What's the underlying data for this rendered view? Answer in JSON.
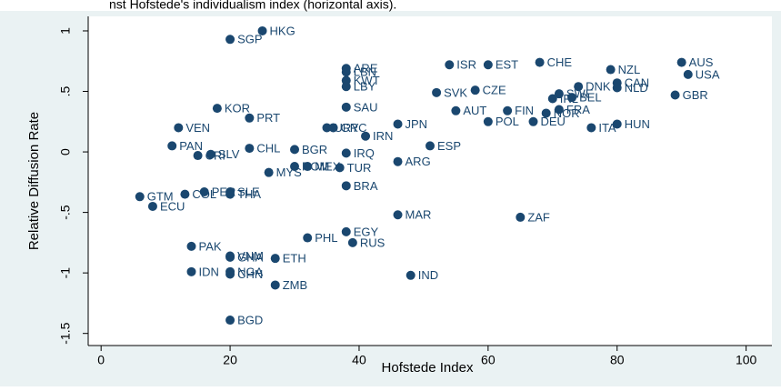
{
  "chart_data": {
    "type": "scatter",
    "caption": "nst Hofstede's individualism index (horizontal axis).",
    "x_label": "Hofstede Index",
    "y_label": "Relative Diffusion Rate",
    "color": "#1a476f",
    "xlim": [
      -2,
      104
    ],
    "ylim": [
      -1.6,
      1.12
    ],
    "xticks": [
      0,
      20,
      40,
      60,
      80,
      100
    ],
    "yticks": [
      1,
      {
        "value": 0.5,
        "label": ".5"
      },
      0,
      {
        "value": -0.5,
        "label": "-.5"
      },
      -1,
      -1.5
    ],
    "labels": [
      "HKG",
      "SGP",
      "ARE",
      "LBN",
      "KWT",
      "LBY",
      "ISR",
      "EST",
      "CHE",
      "NZL",
      "AUS",
      "USA",
      "CAN",
      "NLD",
      "DNK",
      "SWE",
      "IRL",
      "BEL",
      "GBR",
      "NOR",
      "FRA",
      "SVK",
      "CZE",
      "KOR",
      "SAU",
      "PRT",
      "AUT",
      "FIN",
      "VEN",
      "URY",
      "GRC",
      "JPN",
      "IRN",
      "POL",
      "DEU",
      "ITA",
      "HUN",
      "PAN",
      "CHL",
      "BGR",
      "IRQ",
      "ESP",
      "CRI",
      "SLV",
      "ARG",
      "ROM",
      "MEX",
      "TUR",
      "MYS",
      "BRA",
      "GTM",
      "COL",
      "PER",
      "SLE",
      "THA",
      "ECU",
      "MAR",
      "ZAF",
      "EGY",
      "PHL",
      "RUS",
      "PAK",
      "VNM",
      "GHA",
      "ETH",
      "IDN",
      "NGA",
      "CHN",
      "IND",
      "ZMB",
      "BGD"
    ],
    "x": [
      25,
      20,
      38,
      38,
      38,
      38,
      54,
      60,
      68,
      79,
      90,
      91,
      80,
      80,
      74,
      71,
      70,
      73,
      89,
      69,
      71,
      52,
      58,
      18,
      38,
      23,
      55,
      63,
      12,
      35,
      36,
      46,
      41,
      60,
      67,
      76,
      80,
      11,
      23,
      30,
      38,
      51,
      15,
      17,
      46,
      30,
      32,
      37,
      26,
      38,
      6,
      13,
      16,
      20,
      20,
      8,
      46,
      65,
      38,
      32,
      39,
      14,
      20,
      20,
      27,
      14,
      20,
      20,
      48,
      27,
      20
    ],
    "values": [
      1.0,
      0.93,
      0.69,
      0.66,
      0.59,
      0.54,
      0.72,
      0.72,
      0.74,
      0.68,
      0.74,
      0.64,
      0.57,
      0.53,
      0.54,
      0.48,
      0.44,
      0.45,
      0.47,
      0.32,
      0.35,
      0.49,
      0.51,
      0.36,
      0.37,
      0.28,
      0.34,
      0.34,
      0.2,
      0.2,
      0.2,
      0.23,
      0.13,
      0.25,
      0.25,
      0.2,
      0.23,
      0.05,
      0.03,
      0.02,
      -0.01,
      0.05,
      -0.03,
      -0.02,
      -0.08,
      -0.12,
      -0.12,
      -0.13,
      -0.17,
      -0.28,
      -0.37,
      -0.35,
      -0.33,
      -0.33,
      -0.35,
      -0.45,
      -0.52,
      -0.54,
      -0.66,
      -0.71,
      -0.75,
      -0.78,
      -0.86,
      -0.87,
      -0.88,
      -0.99,
      -0.99,
      -1.01,
      -1.02,
      -1.1,
      -1.39
    ]
  }
}
